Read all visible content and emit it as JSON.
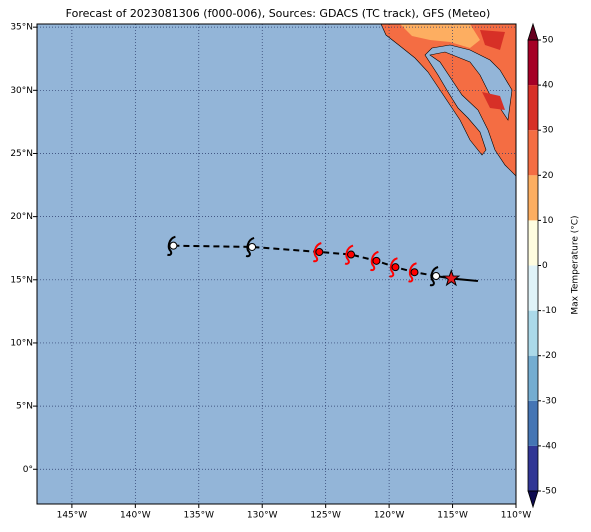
{
  "chart_data": {
    "type": "map",
    "title": "Forecast of 2023081306 (f000-006), Sources: GDACS (TC track), GFS (Meteo)",
    "xlim": [
      -147.75,
      -110
    ],
    "ylim": [
      -2.75,
      35.25
    ],
    "xticks": [
      {
        "value": -145,
        "label": "145°W"
      },
      {
        "value": -140,
        "label": "140°W"
      },
      {
        "value": -135,
        "label": "135°W"
      },
      {
        "value": -130,
        "label": "130°W"
      },
      {
        "value": -125,
        "label": "125°W"
      },
      {
        "value": -120,
        "label": "120°W"
      },
      {
        "value": -115,
        "label": "115°W"
      },
      {
        "value": -110,
        "label": "110°W"
      }
    ],
    "yticks": [
      {
        "value": 0,
        "label": "0°"
      },
      {
        "value": 5,
        "label": "5°N"
      },
      {
        "value": 10,
        "label": "10°N"
      },
      {
        "value": 15,
        "label": "15°N"
      },
      {
        "value": 20,
        "label": "20°N"
      },
      {
        "value": 25,
        "label": "25°N"
      },
      {
        "value": 30,
        "label": "30°N"
      },
      {
        "value": 35,
        "label": "35°N"
      }
    ],
    "grid": true,
    "forecast_track": {
      "x": [
        -137,
        -130.8,
        -125.5,
        -123,
        -121,
        -119.5,
        -118,
        -116.3
      ],
      "y": [
        17.7,
        17.6,
        17.2,
        17.0,
        16.5,
        16.0,
        15.6,
        15.3
      ]
    },
    "past_track": {
      "x": [
        -116.3,
        -115.1,
        -113
      ],
      "y": [
        15.3,
        15.1,
        14.9
      ]
    },
    "markers": {
      "x": [
        -137,
        -130.8,
        -125.5,
        -123,
        -121,
        -119.5,
        -118,
        -116.3
      ],
      "y": [
        17.7,
        17.6,
        17.2,
        17.0,
        16.5,
        16.0,
        15.6,
        15.3
      ],
      "colors": [
        "#ffffff",
        "#ffffff",
        "#ff0000",
        "#ff0000",
        "#ff0000",
        "#ff0000",
        "#ff0000",
        "#ffffff"
      ]
    },
    "current_position": {
      "x": -115.1,
      "y": 15.1,
      "color": "#e8181b"
    },
    "colorbar": {
      "label": "Max Temperature (°C)",
      "lim": [
        -50,
        50
      ],
      "ticks": [
        -50,
        -40,
        -30,
        -20,
        -10,
        0,
        10,
        20,
        30,
        40,
        50
      ],
      "colors": [
        "#313695",
        "#4575b4",
        "#74add1",
        "#abd9e9",
        "#e0f3f8",
        "#fffde0",
        "#fdae61",
        "#f46d43",
        "#d73027",
        "#a50026"
      ]
    }
  }
}
